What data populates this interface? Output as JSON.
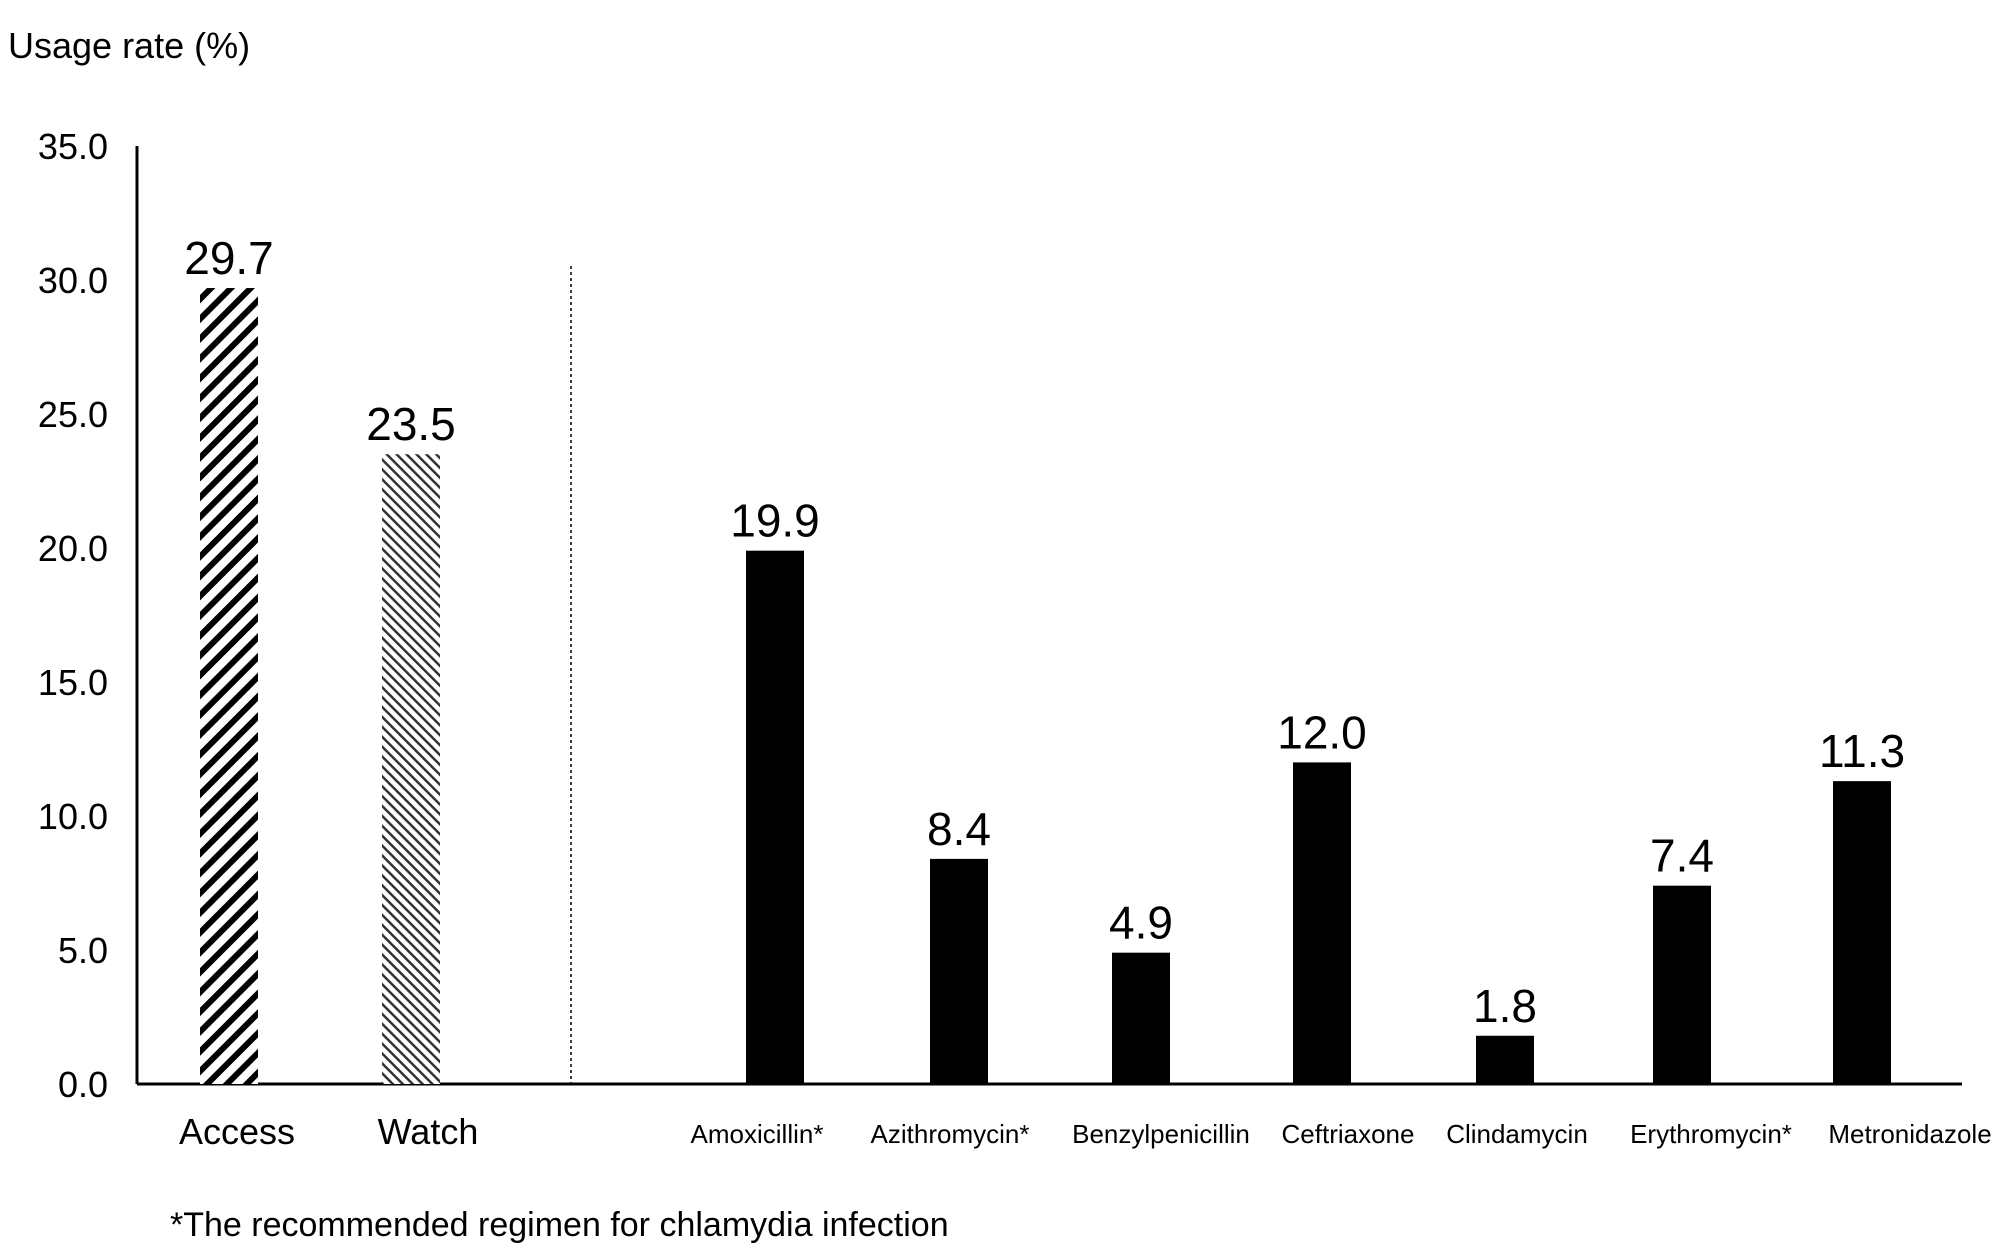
{
  "chart_data": {
    "type": "bar",
    "ylabel": "Usage rate (%)",
    "ylim": [
      0,
      35
    ],
    "yticks": [
      "0.0",
      "5.0",
      "10.0",
      "15.0",
      "20.0",
      "25.0",
      "30.0",
      "35.0"
    ],
    "yticks_values": [
      0,
      5,
      10,
      15,
      20,
      25,
      30,
      35
    ],
    "grid": false,
    "groups": [
      {
        "categories": [
          "Access",
          "Watch"
        ],
        "values": [
          29.7,
          23.5
        ],
        "value_labels": [
          "29.7",
          "23.5"
        ],
        "patterns": [
          "hatch-bold",
          "hatch-fine"
        ]
      },
      {
        "categories": [
          "Amoxicillin*",
          "Azithromycin*",
          "Benzylpenicillin",
          "Ceftriaxone",
          "Clindamycin",
          "Erythromycin*",
          "Metronidazole"
        ],
        "values": [
          19.9,
          8.4,
          4.9,
          12.0,
          1.8,
          7.4,
          11.3
        ],
        "value_labels": [
          "19.9",
          "8.4",
          "4.9",
          "12.0",
          "1.8",
          "7.4",
          "11.3"
        ],
        "fill": "#000000"
      }
    ],
    "footnote": "*The recommended regimen for chlamydia infection"
  }
}
